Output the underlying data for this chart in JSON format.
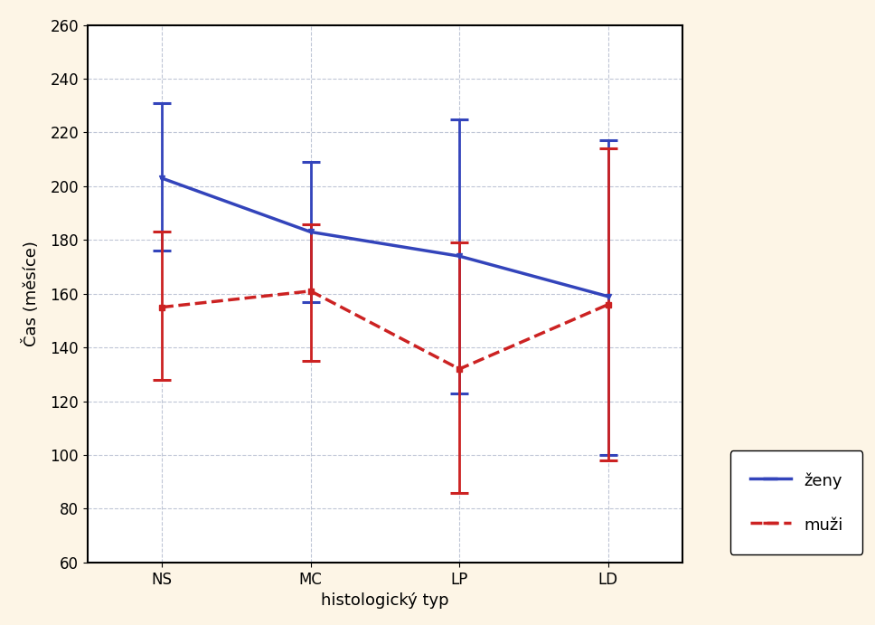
{
  "categories": [
    "NS",
    "MC",
    "LP",
    "LD"
  ],
  "zeny_mean": [
    203,
    183,
    174,
    159
  ],
  "zeny_upper": [
    231,
    209,
    225,
    217
  ],
  "zeny_lower": [
    176,
    157,
    123,
    100
  ],
  "muzi_mean": [
    155,
    161,
    132,
    156
  ],
  "muzi_upper": [
    183,
    186,
    179,
    214
  ],
  "muzi_lower": [
    128,
    135,
    86,
    98
  ],
  "ylabel": "Čas (měsíce)",
  "xlabel": "histologický typ",
  "ylim": [
    60,
    260
  ],
  "yticks": [
    60,
    80,
    100,
    120,
    140,
    160,
    180,
    200,
    220,
    240,
    260
  ],
  "background_color": "#fdf5e6",
  "plot_bg_color": "#ffffff",
  "blue_color": "#3344bb",
  "red_color": "#cc2222",
  "legend_zeny": "ženy",
  "legend_muzi": "muži",
  "axis_fontsize": 13,
  "tick_fontsize": 12,
  "legend_fontsize": 13
}
